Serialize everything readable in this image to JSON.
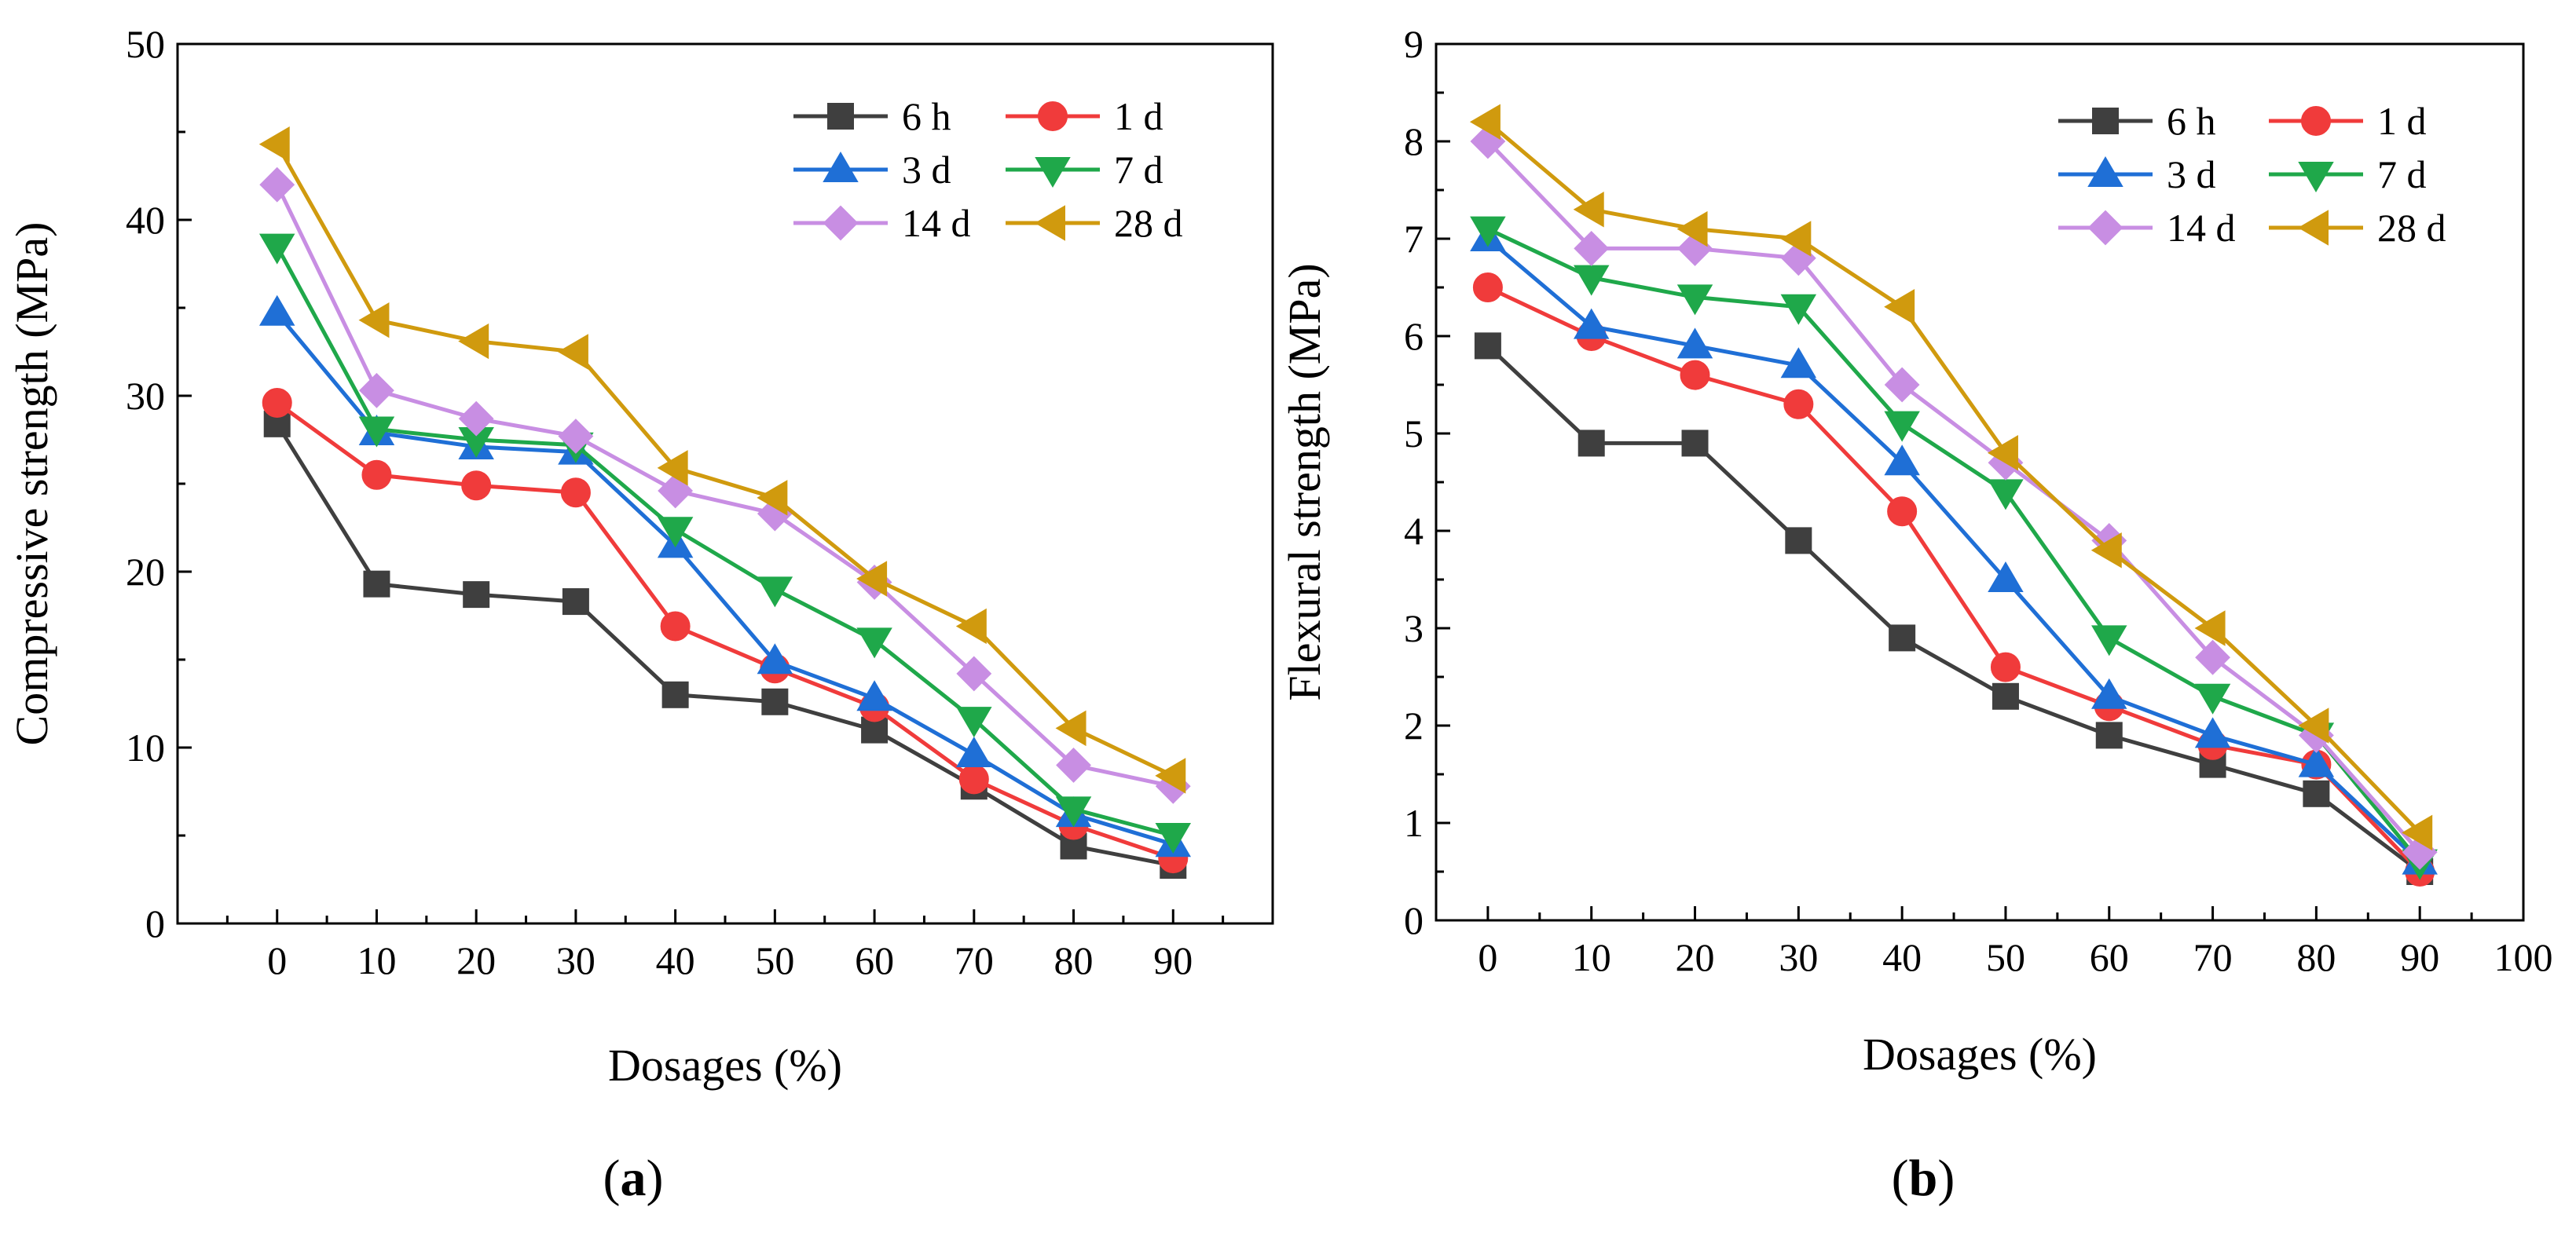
{
  "chart_data": [
    {
      "type": "line",
      "panel_label": "(a)",
      "panel_letter": "a",
      "xlabel": "Dosages (%)",
      "ylabel": "Compressive strength (MPa)",
      "xlim": [
        -10,
        100
      ],
      "ylim": [
        0,
        50
      ],
      "x_ticks": [
        0,
        10,
        20,
        30,
        40,
        50,
        60,
        70,
        80,
        90
      ],
      "y_ticks": [
        0,
        10,
        20,
        30,
        40,
        50
      ],
      "x": [
        0,
        10,
        20,
        30,
        40,
        50,
        60,
        70,
        80,
        90
      ],
      "legend_position": "top-right",
      "series": [
        {
          "name": "6 h",
          "color": "#3f3f3f",
          "marker": "square",
          "values": [
            28.4,
            19.3,
            18.7,
            18.3,
            13.0,
            12.6,
            11.0,
            7.8,
            4.4,
            3.3
          ]
        },
        {
          "name": "1 d",
          "color": "#f03b3b",
          "marker": "circle",
          "values": [
            29.6,
            25.5,
            24.9,
            24.5,
            16.9,
            14.5,
            12.3,
            8.2,
            5.6,
            3.7
          ]
        },
        {
          "name": "3 d",
          "color": "#1f6fd6",
          "marker": "triangle-up",
          "values": [
            34.7,
            27.9,
            27.1,
            26.8,
            21.5,
            14.9,
            12.8,
            9.6,
            6.2,
            4.5
          ]
        },
        {
          "name": "7 d",
          "color": "#1fa84a",
          "marker": "triangle-down",
          "values": [
            38.5,
            28.1,
            27.5,
            27.2,
            22.4,
            19.0,
            16.1,
            11.6,
            6.5,
            5.0
          ]
        },
        {
          "name": "14 d",
          "color": "#c88ee3",
          "marker": "diamond",
          "values": [
            42.0,
            30.3,
            28.7,
            27.7,
            24.6,
            23.3,
            19.4,
            14.2,
            9.0,
            7.8
          ]
        },
        {
          "name": "28 d",
          "color": "#d09a0e",
          "marker": "triangle-left",
          "values": [
            44.3,
            34.3,
            33.1,
            32.5,
            25.9,
            24.2,
            19.6,
            16.9,
            11.1,
            8.4
          ]
        }
      ]
    },
    {
      "type": "line",
      "panel_label": "(b)",
      "panel_letter": "b",
      "xlabel": "Dosages (%)",
      "ylabel": "Flexural strength (MPa)",
      "xlim": [
        -5,
        100
      ],
      "ylim": [
        0,
        9
      ],
      "x_ticks": [
        0,
        10,
        20,
        30,
        40,
        50,
        60,
        70,
        80,
        90,
        100
      ],
      "y_ticks": [
        0,
        1,
        2,
        3,
        4,
        5,
        6,
        7,
        8,
        9
      ],
      "x": [
        0,
        10,
        20,
        30,
        40,
        50,
        60,
        70,
        80,
        90
      ],
      "legend_position": "top-right",
      "series": [
        {
          "name": "6 h",
          "color": "#3f3f3f",
          "marker": "square",
          "values": [
            5.9,
            4.9,
            4.9,
            3.9,
            2.9,
            2.3,
            1.9,
            1.6,
            1.3,
            0.5
          ]
        },
        {
          "name": "1 d",
          "color": "#f03b3b",
          "marker": "circle",
          "values": [
            6.5,
            6.0,
            5.6,
            5.3,
            4.2,
            2.6,
            2.2,
            1.8,
            1.6,
            0.5
          ]
        },
        {
          "name": "3 d",
          "color": "#1f6fd6",
          "marker": "triangle-up",
          "values": [
            7.0,
            6.1,
            5.9,
            5.7,
            4.7,
            3.5,
            2.3,
            1.9,
            1.6,
            0.6
          ]
        },
        {
          "name": "7 d",
          "color": "#1fa84a",
          "marker": "triangle-down",
          "values": [
            7.1,
            6.6,
            6.4,
            6.3,
            5.1,
            4.4,
            2.9,
            2.3,
            1.9,
            0.6
          ]
        },
        {
          "name": "14 d",
          "color": "#c88ee3",
          "marker": "diamond",
          "values": [
            8.0,
            6.9,
            6.9,
            6.8,
            5.5,
            4.7,
            3.9,
            2.7,
            1.9,
            0.7
          ]
        },
        {
          "name": "28 d",
          "color": "#d09a0e",
          "marker": "triangle-left",
          "values": [
            8.2,
            7.3,
            7.1,
            7.0,
            6.3,
            4.8,
            3.8,
            3.0,
            2.0,
            0.9
          ]
        }
      ]
    }
  ]
}
